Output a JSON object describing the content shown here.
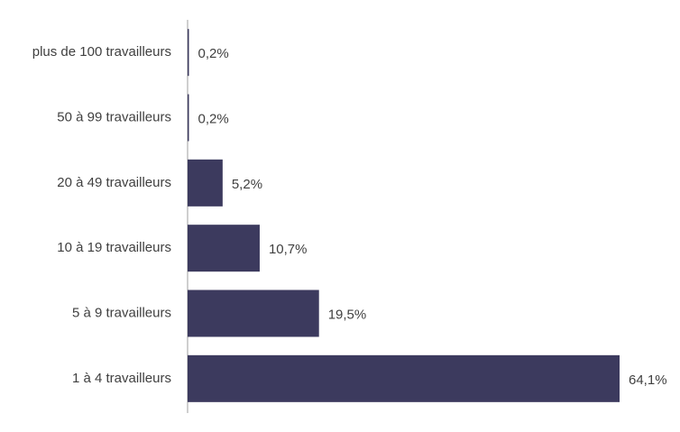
{
  "chart_data": {
    "type": "hbar",
    "categories": [
      "plus de 100 travailleurs",
      "50 à 99 travailleurs",
      "20 à 49 travailleurs",
      "10 à 19 travailleurs",
      "5 à 9 travailleurs",
      "1 à 4 travailleurs"
    ],
    "values": [
      0.2,
      0.2,
      5.2,
      10.7,
      19.5,
      64.1
    ],
    "value_labels": [
      "0,2%",
      "0,2%",
      "5,2%",
      "10,7%",
      "19,5%",
      "64,1%"
    ],
    "color": "#3c3a5e"
  }
}
